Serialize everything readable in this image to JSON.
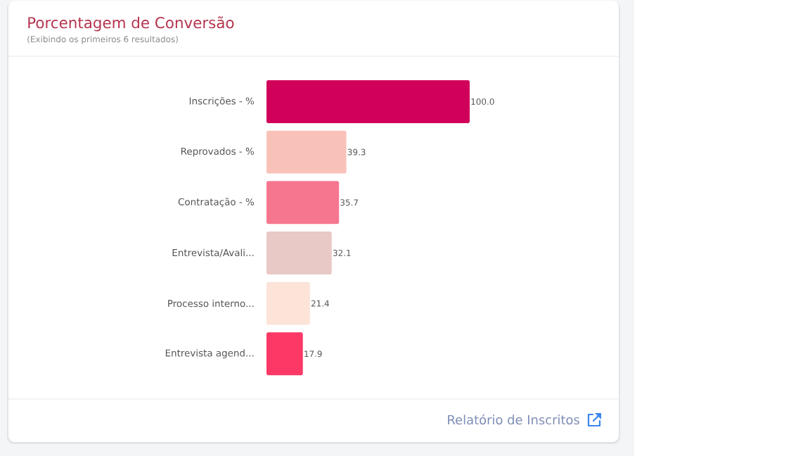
{
  "chart_data": {
    "type": "bar",
    "orientation": "horizontal",
    "title": "Porcentagem de Conversão",
    "subtitle": "(Exibindo os primeiros 6 resultados)",
    "categories": [
      "Inscrições - %",
      "Reprovados - %",
      "Contratação - %",
      "Entrevista/Avali...",
      "Processo interno...",
      "Entrevista agend..."
    ],
    "values": [
      100.0,
      39.3,
      35.7,
      32.1,
      21.4,
      17.9
    ],
    "value_labels": [
      "100.0",
      "39.3",
      "35.7",
      "32.1",
      "21.4",
      "17.9"
    ],
    "colors": [
      "#d1005a",
      "#f9c2b9",
      "#f7768f",
      "#e8c9c5",
      "#fce4d9",
      "#fb3866"
    ],
    "tick_labels": "y",
    "annotations": [
      "Relatório de Inscritos"
    ]
  }
}
